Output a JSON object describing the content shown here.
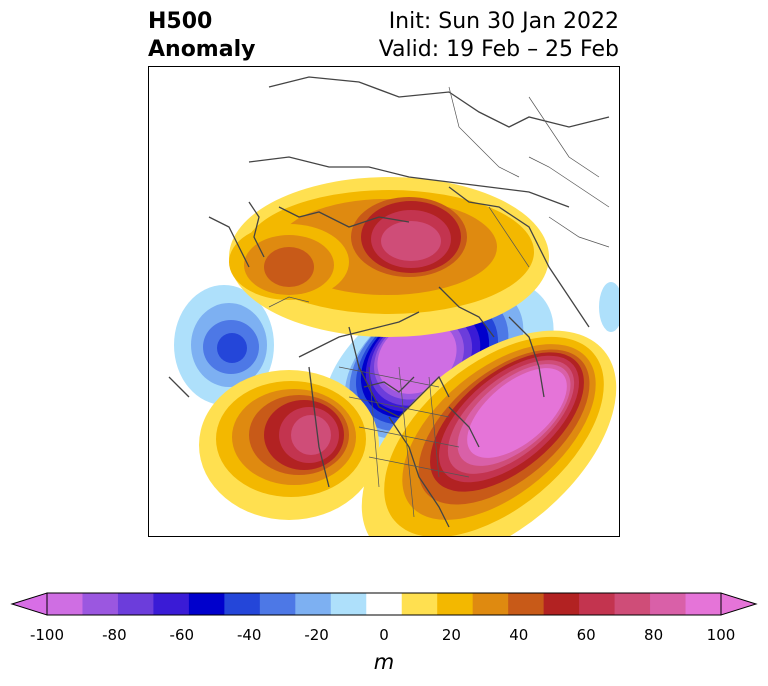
{
  "title": {
    "left_line1": "H500",
    "left_line2": "Anomaly",
    "right_line1": "Init: Sun 30 Jan 2022",
    "right_line2": "Valid: 19 Feb – 25 Feb"
  },
  "map": {
    "projection": "polar stereographic, North America / North Pole",
    "features": [
      {
        "name": "ridge-alaska-yukon",
        "sign": "positive",
        "peak": 60
      },
      {
        "name": "ridge-siberia",
        "sign": "positive",
        "peak": 80
      },
      {
        "name": "trough-north-pacific",
        "sign": "negative",
        "peak": -60
      },
      {
        "name": "trough-canada-greenland",
        "sign": "negative",
        "peak": -100
      },
      {
        "name": "ridge-north-atlantic",
        "sign": "positive",
        "peak": 100
      },
      {
        "name": "ridge-western-europe",
        "sign": "positive",
        "peak": 80
      }
    ]
  },
  "colorbar": {
    "units": "m",
    "ticks": [
      "-100",
      "-80",
      "-60",
      "-40",
      "-20",
      "0",
      "20",
      "40",
      "60",
      "80",
      "100"
    ],
    "colors": [
      "#cf6ee3",
      "#9b57e0",
      "#6c3ddb",
      "#3a1bd6",
      "#0000cc",
      "#2446d9",
      "#4d78e6",
      "#7db0f2",
      "#aee0fb",
      "#ffffff",
      "#ffe050",
      "#f3b800",
      "#df8a10",
      "#c85a18",
      "#b22222",
      "#c3344f",
      "#cf4d78",
      "#d960a8",
      "#e574d8"
    ],
    "under_color": "#d86ee6",
    "over_color": "#e574d8"
  }
}
